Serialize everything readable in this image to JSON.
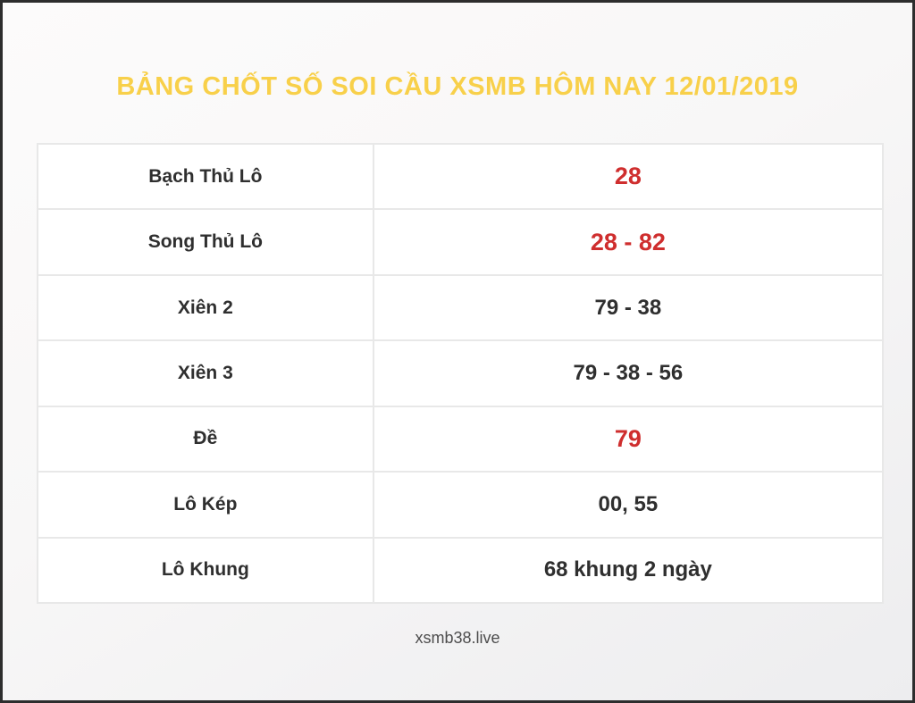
{
  "page": {
    "title": "BẢNG CHỐT SỐ SOI CẦU XSMB HÔM NAY 12/01/2019",
    "footer": "xsmb38.live"
  },
  "colors": {
    "title_color": "#f8d04a",
    "highlight_color": "#cf2e2e",
    "text_color": "#2f2f2f",
    "border_color": "#e8e8e8"
  },
  "table": {
    "rows": [
      {
        "label": "Bạch Thủ Lô",
        "value": "28",
        "highlight": true
      },
      {
        "label": "Song Thủ Lô",
        "value": "28 - 82",
        "highlight": true
      },
      {
        "label": "Xiên 2",
        "value": "79 - 38",
        "highlight": false
      },
      {
        "label": "Xiên 3",
        "value": "79 - 38 - 56",
        "highlight": false
      },
      {
        "label": "Đề",
        "value": "79",
        "highlight": true
      },
      {
        "label": "Lô Kép",
        "value": "00, 55",
        "highlight": false
      },
      {
        "label": "Lô Khung",
        "value": "68 khung 2 ngày",
        "highlight": false
      }
    ]
  }
}
